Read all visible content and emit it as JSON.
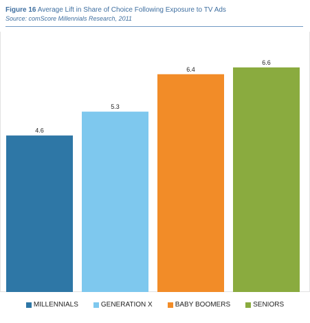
{
  "header": {
    "figure_label": "Figure 16",
    "title": "Average Lift in Share of Choice Following Exposure to TV Ads",
    "source": "Source: comScore Millennials Research, 2011"
  },
  "chart_data": {
    "type": "bar",
    "categories": [
      "MILLENNIALS",
      "GENERATION X",
      "BABY BOOMERS",
      "SENIORS"
    ],
    "values": [
      4.6,
      5.3,
      6.4,
      6.6
    ],
    "value_labels": [
      "4.6",
      "5.3",
      "6.4",
      "6.6"
    ],
    "colors": [
      "#2e77a6",
      "#7ec8ee",
      "#f28c28",
      "#8aab3f"
    ],
    "ylim": [
      0,
      7.65
    ],
    "grid": false,
    "legend_position": "bottom"
  }
}
